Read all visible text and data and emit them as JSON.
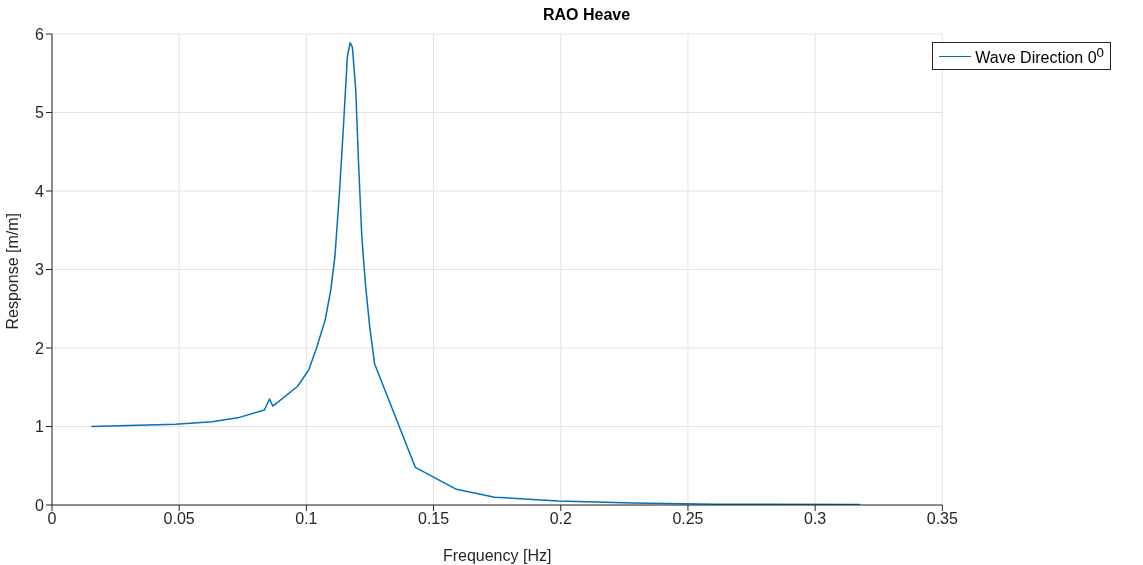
{
  "chart_data": {
    "type": "line",
    "title": "RAO Heave",
    "xlabel": "Frequency [Hz]",
    "ylabel": "Response [m/m]",
    "xlim": [
      0,
      0.35
    ],
    "xticks": [
      0,
      0.05,
      0.1,
      0.15,
      0.2,
      0.25,
      0.3,
      0.35
    ],
    "ylim": [
      0,
      6
    ],
    "yticks": [
      0,
      1,
      2,
      3,
      4,
      5,
      6
    ],
    "grid": true,
    "legend": "top right",
    "marker": "none",
    "line_style": "solid",
    "series": [
      {
        "name": "Wave Direction 0$^{0}$",
        "color": "#0072bd",
        "x": [
          0.0155,
          0.0485,
          0.063,
          0.073,
          0.0835,
          0.0855,
          0.0868,
          0.0965,
          0.1009,
          0.104,
          0.1074,
          0.1096,
          0.1112,
          0.1129,
          0.1145,
          0.1161,
          0.1172,
          0.1181,
          0.1194,
          0.1205,
          0.1218,
          0.1232,
          0.1249,
          0.1268,
          0.1428,
          0.159,
          0.174,
          0.199,
          0.2285,
          0.261,
          0.3176
        ],
        "values": [
          1.0,
          1.03,
          1.06,
          1.11,
          1.21,
          1.35,
          1.26,
          1.51,
          1.72,
          2.0,
          2.36,
          2.74,
          3.16,
          3.93,
          4.78,
          5.71,
          5.89,
          5.83,
          5.29,
          4.36,
          3.41,
          2.82,
          2.27,
          1.8,
          0.48,
          0.2,
          0.1,
          0.05,
          0.025,
          0.01,
          0.005
        ]
      }
    ]
  }
}
